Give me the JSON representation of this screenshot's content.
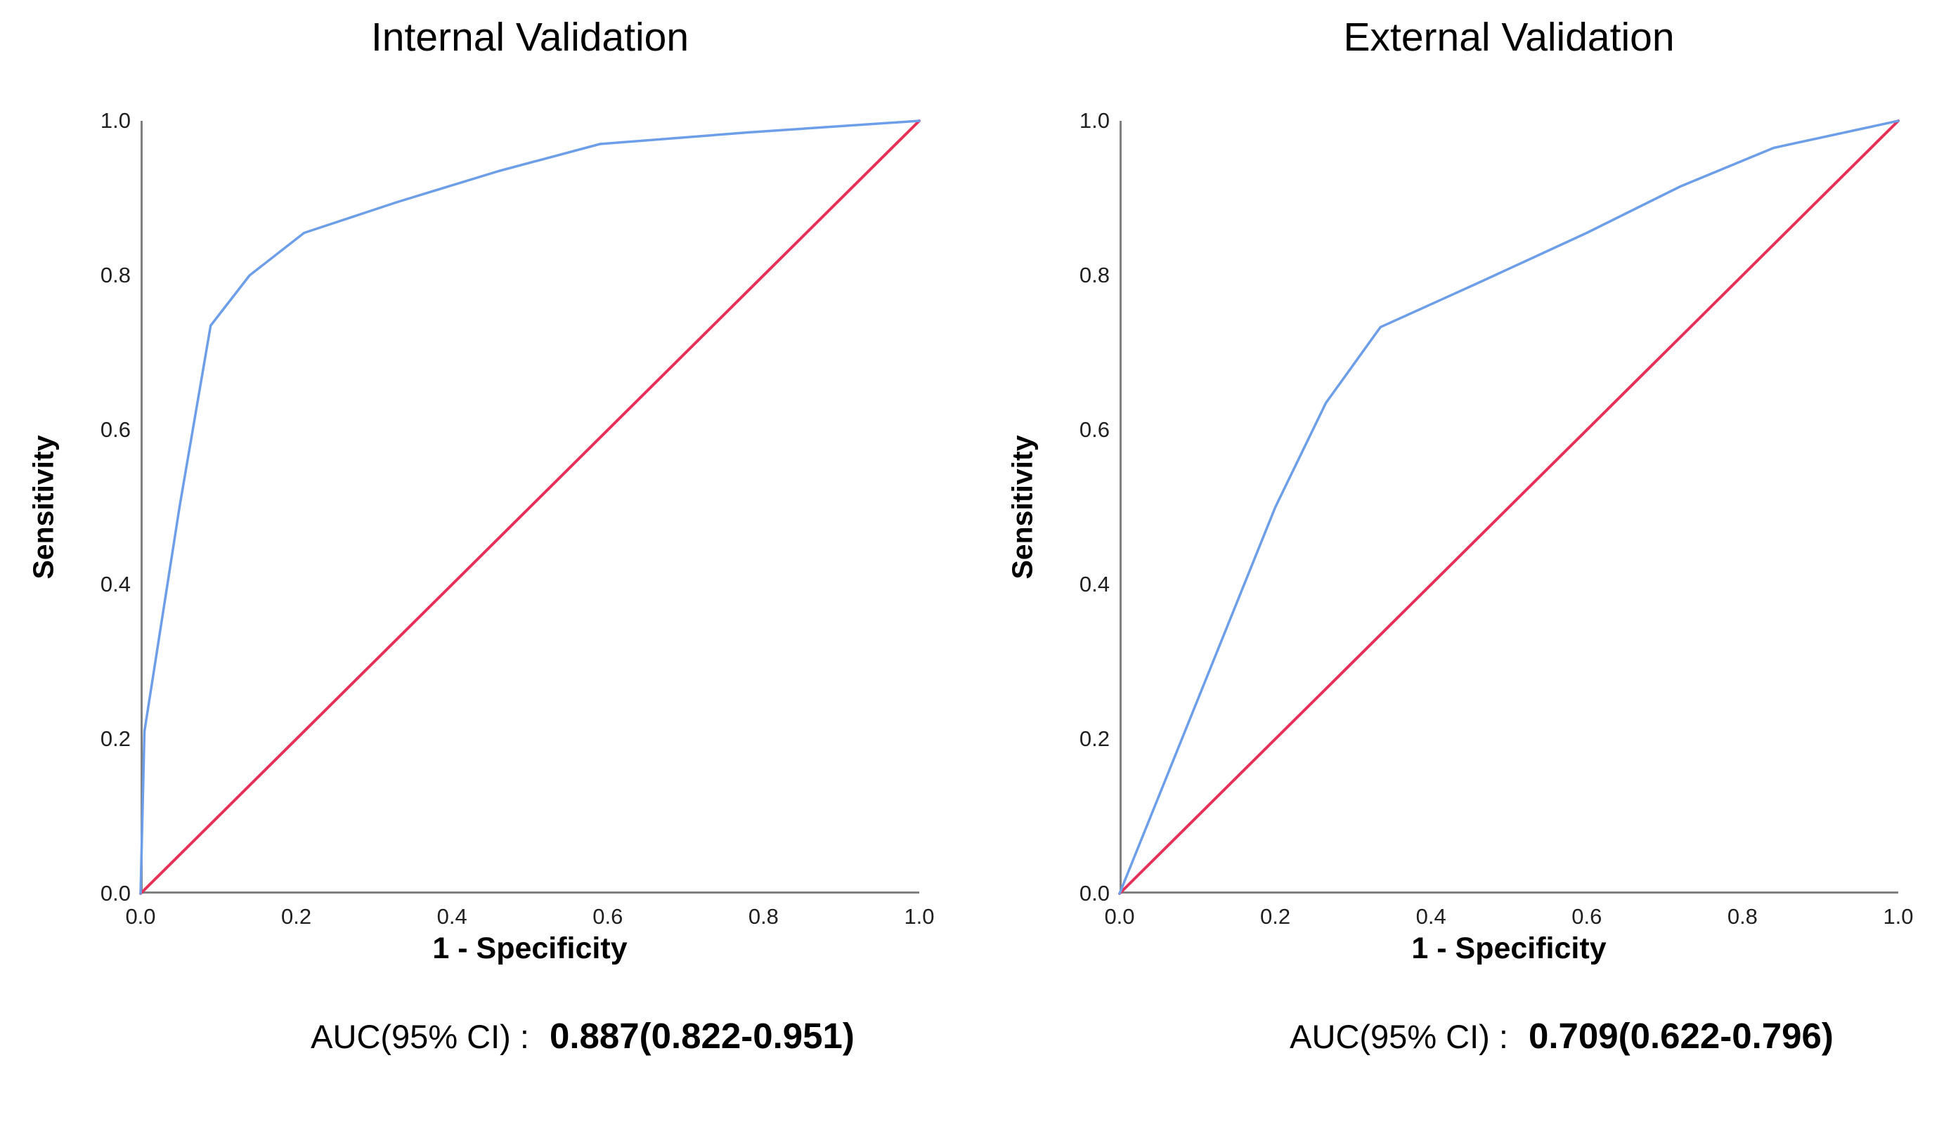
{
  "figure": {
    "background": "#ffffff",
    "axis_text_color": "#1f1f1f"
  },
  "chart_data": [
    {
      "type": "line",
      "title": "Internal Validation",
      "xlabel": "1 - Specificity",
      "ylabel": "Sensitivity",
      "xlim": [
        0,
        1
      ],
      "ylim": [
        0,
        1
      ],
      "grid": false,
      "legend": "none",
      "axis_color": "#808080",
      "x_ticks": [
        "0.0",
        "0.2",
        "0.4",
        "0.6",
        "0.8",
        "1.0"
      ],
      "y_ticks": [
        "0.0",
        "0.2",
        "0.4",
        "0.6",
        "0.8",
        "1.0"
      ],
      "series": [
        {
          "name": "Reference line",
          "color": "#E53058",
          "width": 4,
          "points": [
            [
              0,
              0
            ],
            [
              1,
              1
            ]
          ]
        },
        {
          "name": "ROC curve",
          "color": "#6D9EE8",
          "width": 3.5,
          "points": [
            [
              0,
              0
            ],
            [
              0.005,
              0.21
            ],
            [
              0.05,
              0.5
            ],
            [
              0.09,
              0.735
            ],
            [
              0.14,
              0.8
            ],
            [
              0.21,
              0.855
            ],
            [
              0.33,
              0.895
            ],
            [
              0.46,
              0.935
            ],
            [
              0.59,
              0.97
            ],
            [
              0.78,
              0.985
            ],
            [
              1,
              1
            ]
          ]
        }
      ],
      "auc_prefix": "AUC(95% CI) :",
      "auc_value": "0.887(0.822-0.951)"
    },
    {
      "type": "line",
      "title": "External Validation",
      "xlabel": "1 - Specificity",
      "ylabel": "Sensitivity",
      "xlim": [
        0,
        1
      ],
      "ylim": [
        0,
        1
      ],
      "grid": false,
      "legend": "none",
      "axis_color": "#808080",
      "x_ticks": [
        "0.0",
        "0.2",
        "0.4",
        "0.6",
        "0.8",
        "1.0"
      ],
      "y_ticks": [
        "0.0",
        "0.2",
        "0.4",
        "0.6",
        "0.8",
        "1.0"
      ],
      "series": [
        {
          "name": "Reference line",
          "color": "#E53058",
          "width": 4,
          "points": [
            [
              0,
              0
            ],
            [
              1,
              1
            ]
          ]
        },
        {
          "name": "ROC curve",
          "color": "#6D9EE8",
          "width": 3.5,
          "points": [
            [
              0,
              0
            ],
            [
              0.2,
              0.5
            ],
            [
              0.265,
              0.635
            ],
            [
              0.335,
              0.733
            ],
            [
              0.46,
              0.79
            ],
            [
              0.6,
              0.855
            ],
            [
              0.72,
              0.915
            ],
            [
              0.84,
              0.965
            ],
            [
              1,
              1
            ]
          ]
        }
      ],
      "auc_prefix": "AUC(95% CI) :",
      "auc_value": "0.709(0.622-0.796)"
    }
  ]
}
